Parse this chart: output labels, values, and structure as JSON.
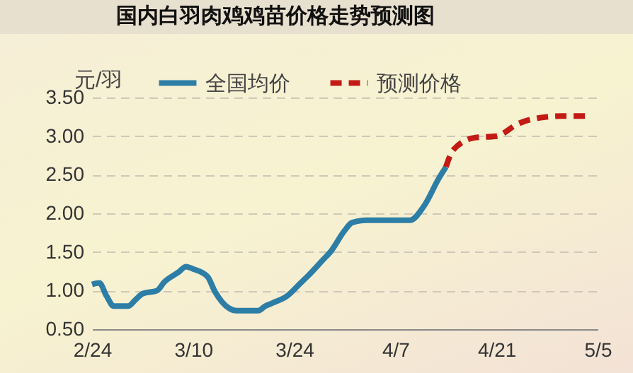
{
  "chart_data": {
    "type": "line",
    "title": "国内白羽肉鸡鸡苗价格走势预测图",
    "ylabel": "元/羽",
    "ylim": [
      0.5,
      3.5
    ],
    "yticks": [
      {
        "value": 0.5,
        "label": "0.50"
      },
      {
        "value": 1,
        "label": "1.00"
      },
      {
        "value": 1.5,
        "label": "1.50"
      },
      {
        "value": 2,
        "label": "2.00"
      },
      {
        "value": 2.5,
        "label": "2.50"
      },
      {
        "value": 3,
        "label": "3.00"
      },
      {
        "value": 3.5,
        "label": "3.50"
      }
    ],
    "xlim": [
      "--02-24",
      "--05-05"
    ],
    "xticks": [
      {
        "value": "--02-24",
        "label": "2/24"
      },
      {
        "value": "--03-10",
        "label": "3/10"
      },
      {
        "value": "--03-24",
        "label": "3/24"
      },
      {
        "value": "--04-07",
        "label": "4/7"
      },
      {
        "value": "--04-21",
        "label": "4/21"
      },
      {
        "value": "--05-05",
        "label": "5/5"
      }
    ],
    "grid": "y",
    "legend": "top",
    "marker": "none",
    "series": [
      {
        "name": "全国均价",
        "color": "#2c7ea6",
        "line_style": "solid",
        "x": [
          "--02-24",
          "--02-25",
          "--02-26",
          "--02-27",
          "--03-01",
          "--03-02",
          "--03-03",
          "--03-05",
          "--03-06",
          "--03-08",
          "--03-09",
          "--03-10",
          "--03-12",
          "--03-13",
          "--03-15",
          "--03-16",
          "--03-19",
          "--03-20",
          "--03-21",
          "--03-23",
          "--03-25",
          "--03-26",
          "--03-28",
          "--03-29",
          "--03-31",
          "--04-01",
          "--04-03",
          "--04-09",
          "--04-11",
          "--04-13",
          "--04-14"
        ],
        "values": [
          1.08,
          1.1,
          0.93,
          0.8,
          0.8,
          0.88,
          0.96,
          1.0,
          1.11,
          1.24,
          1.31,
          1.28,
          1.18,
          0.99,
          0.77,
          0.74,
          0.74,
          0.8,
          0.84,
          0.93,
          1.11,
          1.2,
          1.4,
          1.5,
          1.78,
          1.88,
          1.91,
          1.91,
          2.1,
          2.45,
          2.6
        ]
      },
      {
        "name": "预测价格",
        "color": "#c41a16",
        "line_style": "dashed",
        "x": [
          "--04-14",
          "--04-15",
          "--04-18",
          "--04-21",
          "--04-24",
          "--04-26",
          "--04-30",
          "--05-04"
        ],
        "values": [
          2.6,
          2.82,
          2.98,
          3.0,
          3.16,
          3.22,
          3.26,
          3.26
        ]
      }
    ]
  }
}
